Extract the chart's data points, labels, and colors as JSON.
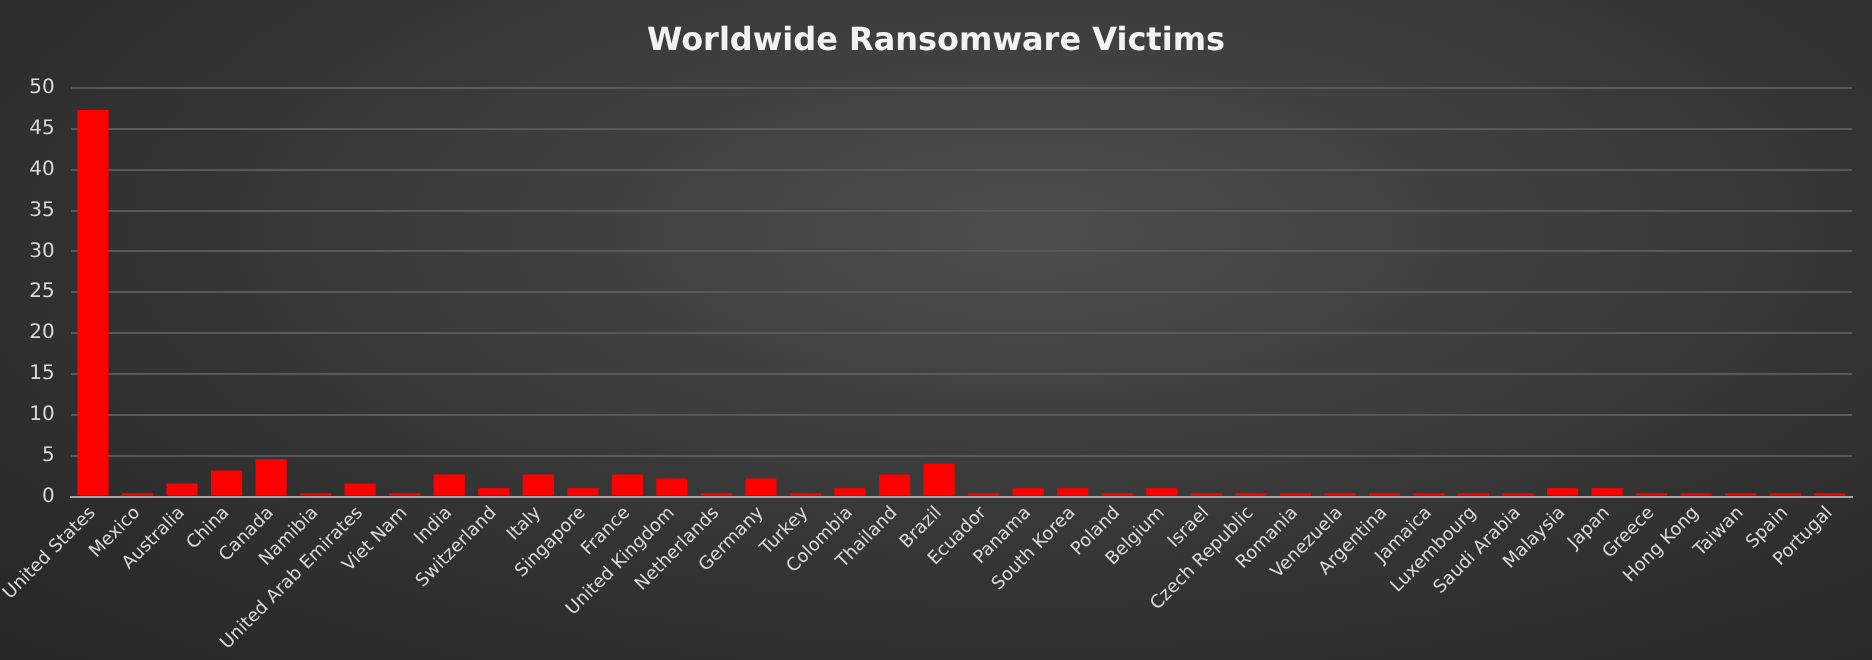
{
  "chart_data": {
    "type": "bar",
    "title": "Worldwide Ransomware Victims",
    "categories": [
      "United States",
      "Mexico",
      "Australia",
      "China",
      "Canada",
      "Namibia",
      "United Arab Emirates",
      "Viet Nam",
      "India",
      "Switzerland",
      "Italy",
      "Singapore",
      "France",
      "United Kingdom",
      "Netherlands",
      "Germany",
      "Turkey",
      "Colombia",
      "Thailand",
      "Brazil",
      "Ecuador",
      "Panama",
      "South Korea",
      "Poland",
      "Belgium",
      "Israel",
      "Czech Republic",
      "Romania",
      "Venezuela",
      "Argentina",
      "Jamaica",
      "Luxembourg",
      "Saudi Arabia",
      "Malaysia",
      "Japan",
      "Greece",
      "Hong Kong",
      "Taiwan",
      "Spain",
      "Portugal"
    ],
    "values": [
      47.3,
      0.4,
      1.6,
      3.2,
      4.6,
      0.4,
      1.6,
      0.4,
      2.7,
      1,
      2.7,
      1,
      2.7,
      2.2,
      0.4,
      2.2,
      0.4,
      1,
      2.7,
      4,
      0.4,
      1,
      1,
      0.4,
      1,
      0.4,
      0.4,
      0.4,
      0.4,
      0.4,
      0.4,
      0.4,
      0.4,
      1,
      1,
      0.4,
      0.4,
      0.4,
      0.4,
      0.4
    ],
    "color": "#ff0000",
    "ylim": [
      0,
      50
    ],
    "yticks": [
      0,
      5,
      10,
      15,
      20,
      25,
      30,
      35,
      40,
      45,
      50
    ],
    "grid": "y",
    "legend": false
  }
}
